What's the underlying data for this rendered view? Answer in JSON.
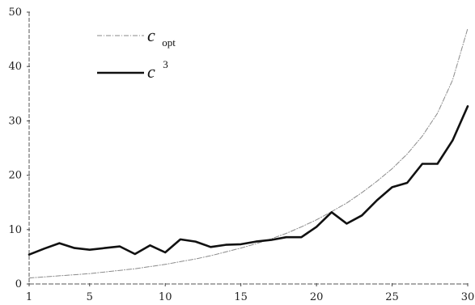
{
  "chart_data": {
    "type": "line",
    "title": "",
    "xlabel": "",
    "ylabel": "",
    "xlim": [
      1,
      30
    ],
    "ylim": [
      0,
      50
    ],
    "x_ticks": [
      1,
      5,
      10,
      15,
      20,
      25,
      30
    ],
    "y_ticks": [
      0,
      10,
      20,
      30,
      40,
      50
    ],
    "grid": false,
    "legend_position": "top-left",
    "x": [
      1,
      2,
      3,
      4,
      5,
      6,
      7,
      8,
      9,
      10,
      11,
      12,
      13,
      14,
      15,
      16,
      17,
      18,
      19,
      20,
      21,
      22,
      23,
      24,
      25,
      26,
      27,
      28,
      29,
      30
    ],
    "series": [
      {
        "name": "c",
        "name_subscript": "opt",
        "style": "dash-dot",
        "color": "#8a8a8a",
        "values": [
          1.1,
          1.3,
          1.5,
          1.7,
          1.9,
          2.2,
          2.5,
          2.8,
          3.2,
          3.6,
          4.1,
          4.6,
          5.2,
          5.9,
          6.6,
          7.4,
          8.3,
          9.3,
          10.5,
          11.8,
          13.3,
          14.9,
          16.8,
          18.9,
          21.2,
          23.9,
          27.2,
          31.4,
          37.5,
          47.0
        ]
      },
      {
        "name": "c",
        "name_superscript": "3",
        "style": "solid",
        "color": "#111111",
        "values": [
          5.4,
          6.5,
          7.5,
          6.6,
          6.3,
          6.6,
          6.9,
          5.5,
          7.1,
          5.8,
          8.2,
          7.8,
          6.8,
          7.2,
          7.3,
          7.8,
          8.1,
          8.6,
          8.6,
          10.5,
          13.2,
          11.1,
          12.6,
          15.4,
          17.8,
          18.6,
          22.1,
          22.1,
          26.4,
          32.7
        ]
      }
    ]
  }
}
